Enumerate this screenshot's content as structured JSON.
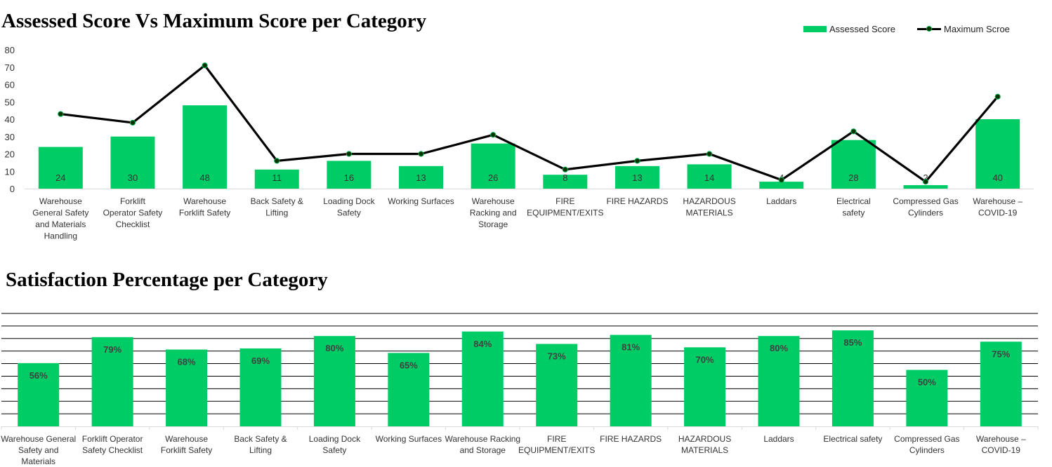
{
  "chart_data": [
    {
      "type": "bar",
      "title": "Assessed Score Vs Maximum Score per Category",
      "categories": [
        "Warehouse General Safety and Materials Handling",
        "Forklift Operator Safety Checklist",
        "Warehouse Forklift Safety",
        "Back Safety & Lifting",
        "Loading Dock Safety",
        "Working Surfaces",
        "Warehouse Racking and Storage",
        "FIRE EQUIPMENT/EXITS",
        "FIRE HAZARDS",
        "HAZARDOUS MATERIALS",
        "Laddars",
        "Electrical safety",
        "Compressed Gas Cylinders",
        "Warehouse – COVID-19"
      ],
      "series": [
        {
          "name": "Assessed Score",
          "type": "bar",
          "values": [
            24,
            30,
            48,
            11,
            16,
            13,
            26,
            8,
            13,
            14,
            4,
            28,
            2,
            40
          ]
        },
        {
          "name": "Maximum Scroe",
          "type": "line",
          "values": [
            43,
            38,
            71,
            16,
            20,
            20,
            31,
            11,
            16,
            20,
            5,
            33,
            4,
            53
          ]
        }
      ],
      "ylim": [
        0,
        80
      ],
      "yticks": [
        "0",
        "10",
        "20",
        "30",
        "40",
        "50",
        "60",
        "70",
        "80"
      ],
      "legend": "top-right",
      "colors": {
        "bar": "#00cc66",
        "line": "#000000",
        "marker": "#003300"
      }
    },
    {
      "type": "bar",
      "title": "Satisfaction Percentage per Category",
      "categories": [
        "Warehouse General Safety and Materials Handling",
        "Forklift Operator Safety Checklist",
        "Warehouse Forklift Safety",
        "Back Safety & Lifting",
        "Loading Dock Safety",
        "Working Surfaces",
        "Warehouse Racking and Storage",
        "FIRE EQUIPMENT/EXITS",
        "FIRE HAZARDS",
        "HAZARDOUS MATERIALS",
        "Laddars",
        "Electrical safety",
        "Compressed Gas Cylinders",
        "Warehouse – COVID-19"
      ],
      "values": [
        56,
        79,
        68,
        69,
        80,
        65,
        84,
        73,
        81,
        70,
        80,
        85,
        50,
        75
      ],
      "labels": [
        "56%",
        "79%",
        "68%",
        "69%",
        "80%",
        "65%",
        "84%",
        "73%",
        "81%",
        "70%",
        "80%",
        "85%",
        "50%",
        "75%"
      ],
      "ylim": [
        0,
        100
      ],
      "grid": true,
      "colors": {
        "bar": "#00cc66",
        "grid": "#000000"
      }
    }
  ]
}
